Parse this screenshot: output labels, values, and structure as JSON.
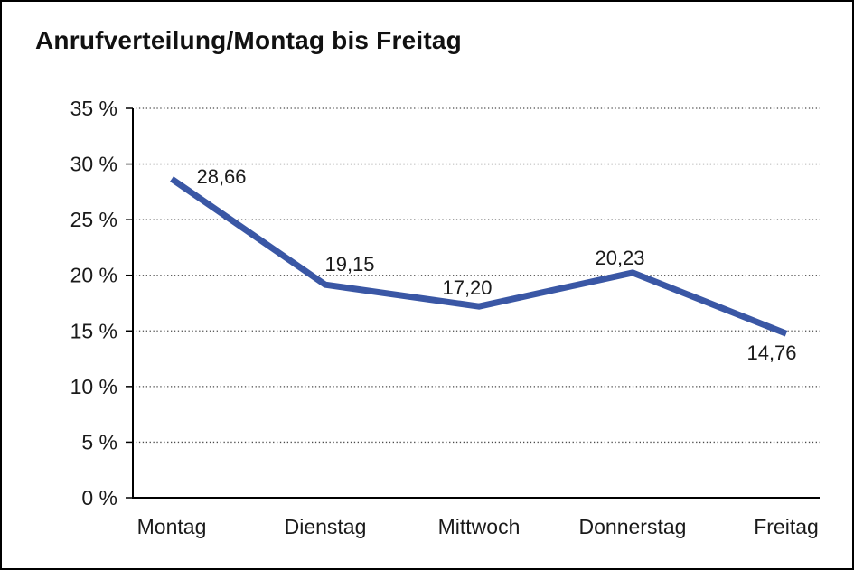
{
  "chart_data": {
    "type": "line",
    "title": "Anrufverteilung/Montag bis Freitag",
    "categories": [
      "Montag",
      "Dienstag",
      "Mittwoch",
      "Donnerstag",
      "Freitag"
    ],
    "series": [
      {
        "name": "Anrufverteilung",
        "values": [
          28.66,
          19.15,
          17.2,
          20.23,
          14.76
        ],
        "value_labels": [
          "28,66",
          "19,15",
          "17,20",
          "20,23",
          "14,76"
        ]
      }
    ],
    "xlabel": "",
    "ylabel": "",
    "ylim": [
      0,
      35
    ],
    "y_ticks": [
      0,
      5,
      10,
      15,
      20,
      25,
      30,
      35
    ],
    "y_tick_labels": [
      "0 %",
      "5 %",
      "10 %",
      "15 %",
      "20 %",
      "25 %",
      "30 %",
      "35 %"
    ],
    "grid": "horizontal-dotted",
    "legend": "none",
    "colors": {
      "line": "#3A57A5",
      "axis": "#000000",
      "gridline": "#4a4a4a",
      "text": "#1a1a1a",
      "background": "#ffffff",
      "border": "#000000"
    }
  }
}
